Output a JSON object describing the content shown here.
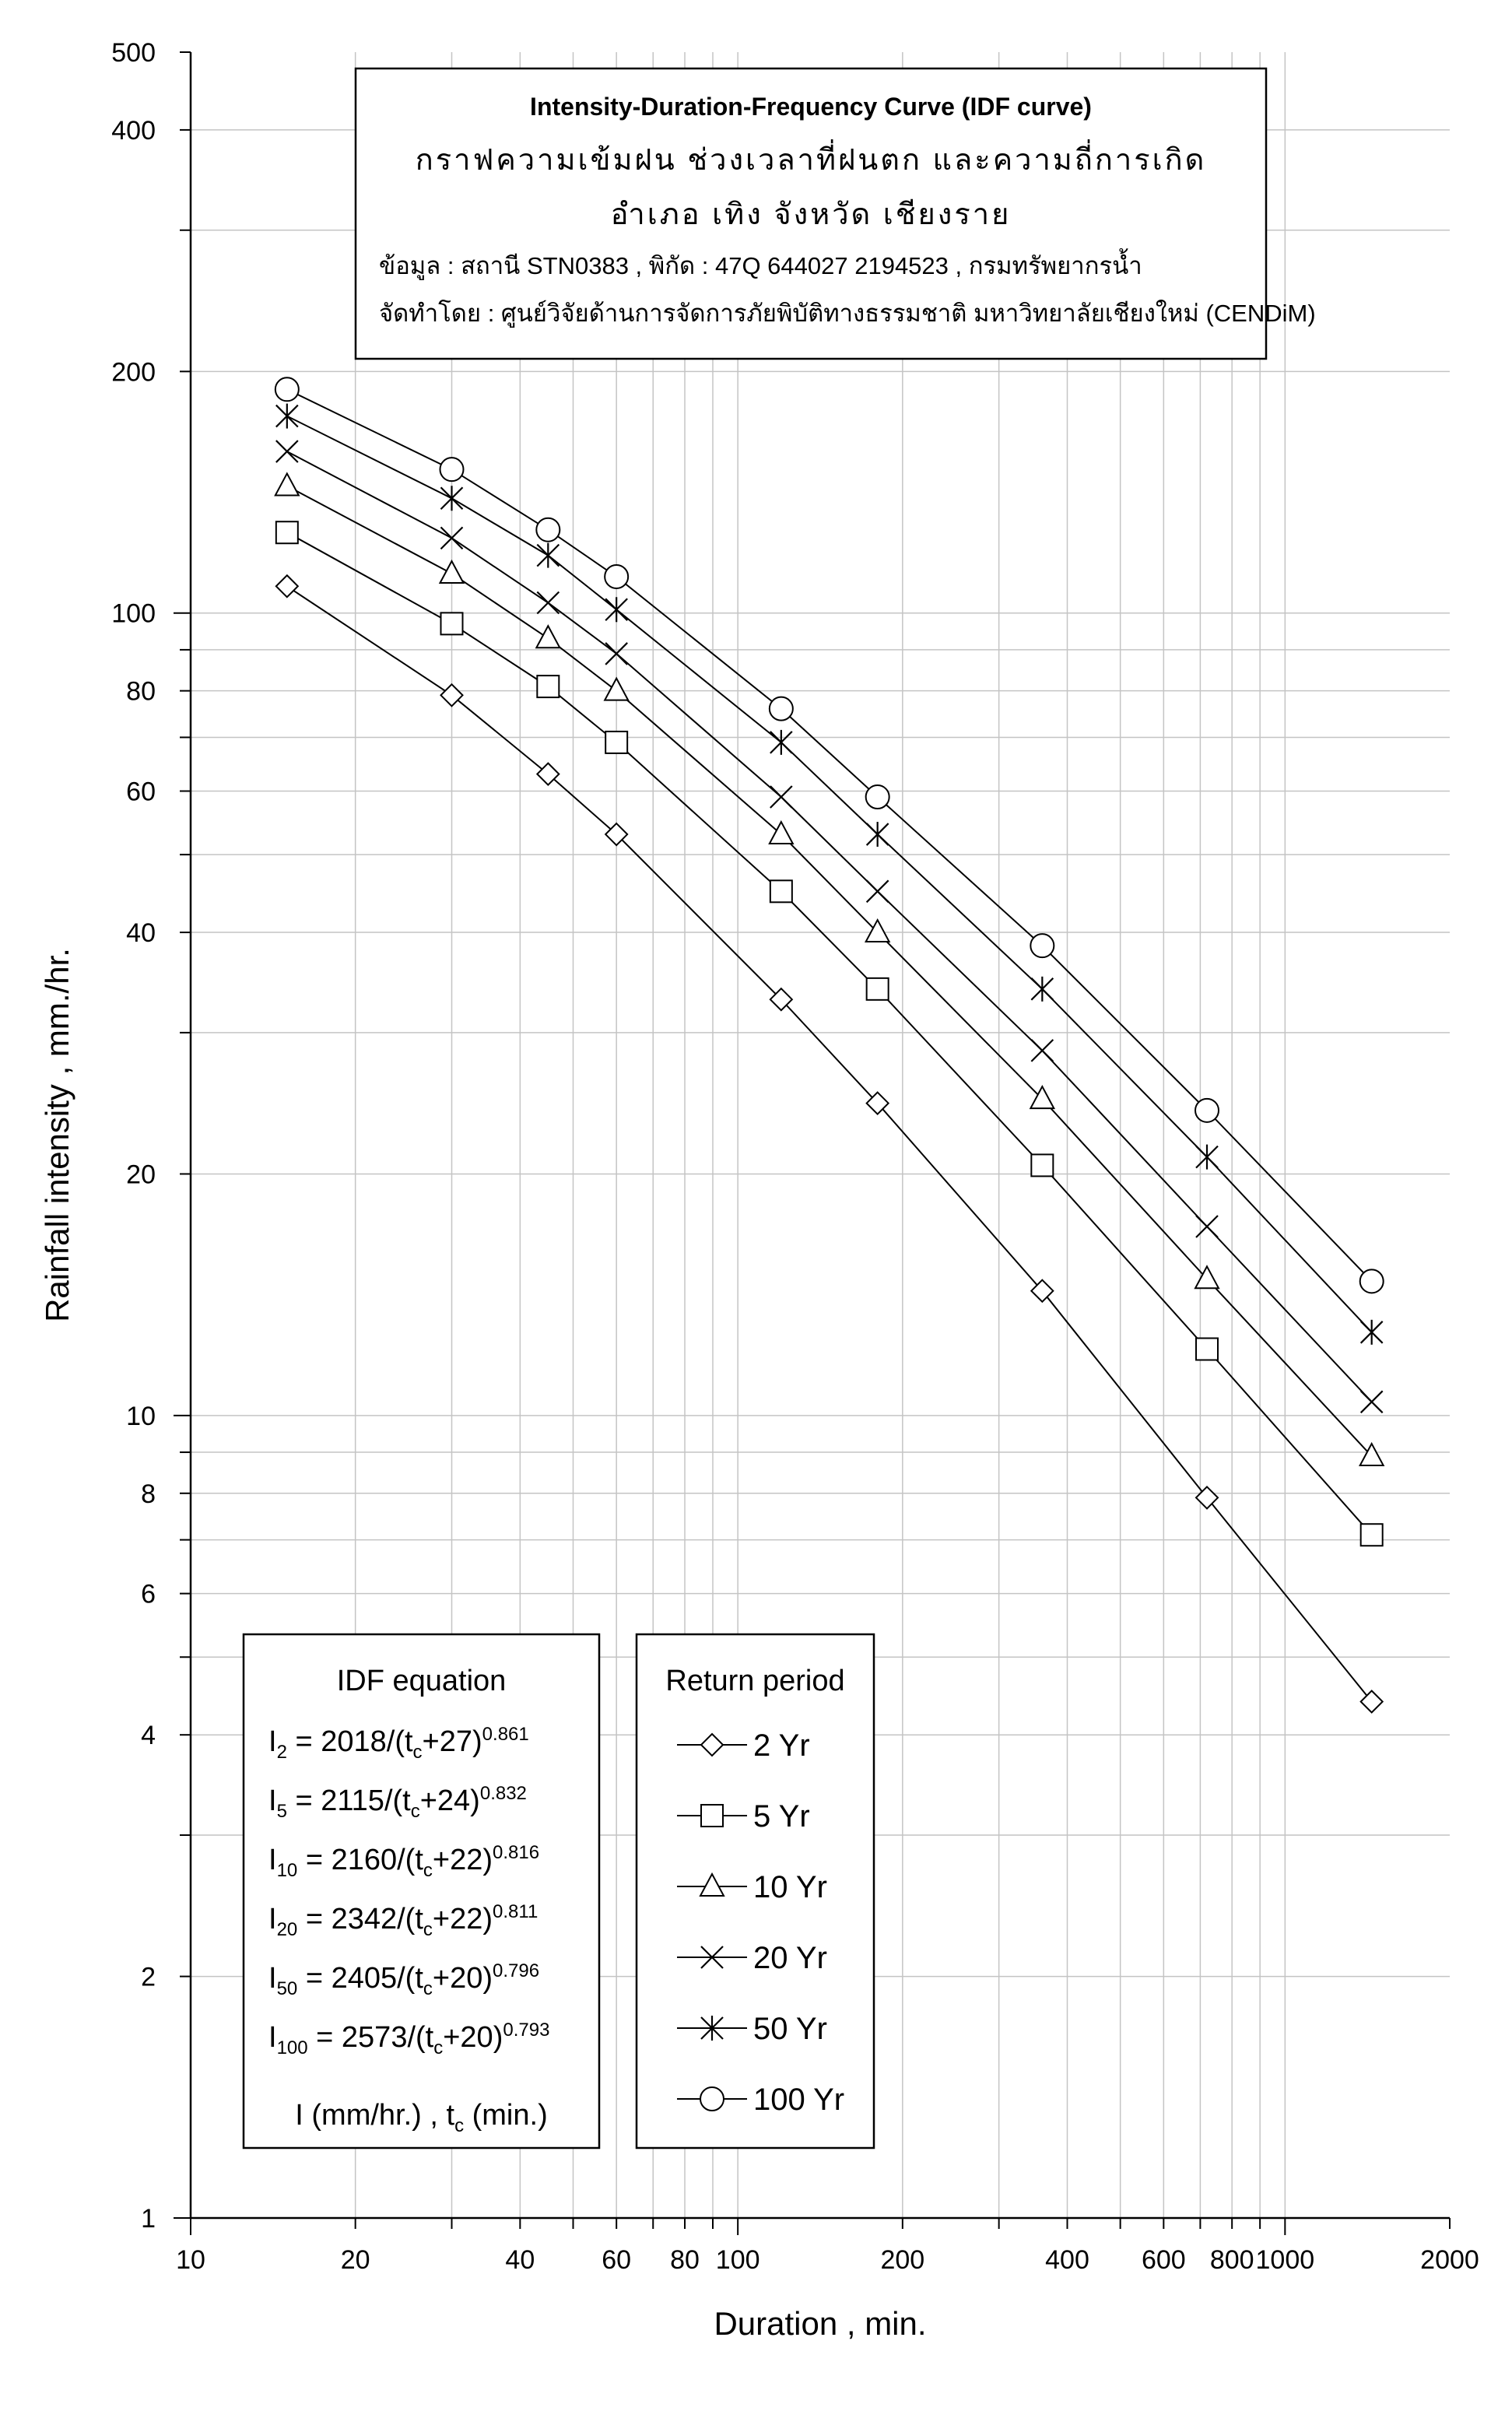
{
  "chart_data": {
    "type": "line",
    "x_scale": "log",
    "y_scale": "log",
    "xlim": [
      10,
      2000
    ],
    "ylim": [
      1,
      500
    ],
    "xlabel": "Duration , min.",
    "ylabel": "Rainfall intensity , mm./hr.",
    "x_tick_labels": [
      "10",
      "20",
      "40",
      "60",
      "80",
      "100",
      "200",
      "400",
      "600",
      "800",
      "1000",
      "2000"
    ],
    "y_tick_labels": [
      "1",
      "2",
      "4",
      "6",
      "8",
      "10",
      "20",
      "40",
      "60",
      "80",
      "100",
      "200",
      "400",
      "500"
    ],
    "grid": true,
    "legend_placement": "bottom-center",
    "legend_title": "Return period",
    "title_lines": [
      "Intensity-Duration-Frequency Curve (IDF curve)",
      "กราฟความเข้มฝน ช่วงเวลาที่ฝนตก และความถี่การเกิด",
      "อำเภอ เทิง จังหวัด เชียงราย",
      "ข้อมูล : สถานี STN0383 , พิกัด : 47Q 644027 2194523 , กรมทรัพยากรน้ำ",
      "จัดทำโดย : ศูนย์วิจัยด้านการจัดการภัยพิบัติทางธรรมชาติ มหาวิทยาลัยเชียงใหม่ (CENDiM)"
    ],
    "x": [
      15,
      30,
      45,
      60,
      120,
      180,
      360,
      720,
      1440
    ],
    "series": [
      {
        "name": "2 Yr",
        "marker": "diamond",
        "values": [
          108,
          79,
          63,
          53,
          33,
          24.5,
          14.3,
          7.9,
          4.4
        ]
      },
      {
        "name": "5 Yr",
        "marker": "square",
        "values": [
          126,
          97,
          81,
          69,
          45,
          34,
          20.5,
          12.1,
          7.1
        ]
      },
      {
        "name": "10 Yr",
        "marker": "triangle",
        "values": [
          144,
          112,
          93,
          80,
          53,
          40,
          24.8,
          14.8,
          8.9
        ]
      },
      {
        "name": "20 Yr",
        "marker": "x",
        "values": [
          159,
          124,
          103,
          89,
          59,
          45,
          28.5,
          17.2,
          10.4
        ]
      },
      {
        "name": "50 Yr",
        "marker": "asterisk",
        "values": [
          176,
          139,
          118,
          101,
          69,
          53,
          34,
          21,
          12.7
        ]
      },
      {
        "name": "100 Yr",
        "marker": "circle",
        "values": [
          190,
          151,
          127,
          111,
          76,
          59,
          38.5,
          24,
          14.7
        ]
      }
    ],
    "equations": {
      "title": "IDF equation",
      "rows": [
        {
          "pre": "I",
          "sub": "2",
          "mid": " = 2018/(t",
          "sub2": "c",
          "post": "+27)",
          "sup": "0.861"
        },
        {
          "pre": "I",
          "sub": "5",
          "mid": " = 2115/(t",
          "sub2": "c",
          "post": "+24)",
          "sup": "0.832"
        },
        {
          "pre": "I",
          "sub": "10",
          "mid": " = 2160/(t",
          "sub2": "c",
          "post": "+22)",
          "sup": "0.816"
        },
        {
          "pre": "I",
          "sub": "20",
          "mid": " = 2342/(t",
          "sub2": "c",
          "post": "+22)",
          "sup": "0.811"
        },
        {
          "pre": "I",
          "sub": "50",
          "mid": " = 2405/(t",
          "sub2": "c",
          "post": "+20)",
          "sup": "0.796"
        },
        {
          "pre": "I",
          "sub": "100",
          "mid": " = 2573/(t",
          "sub2": "c",
          "post": "+20)",
          "sup": "0.793"
        }
      ],
      "units_pre": "I (mm/hr.) , t",
      "units_sub": "c",
      "units_post": " (min.)"
    }
  }
}
